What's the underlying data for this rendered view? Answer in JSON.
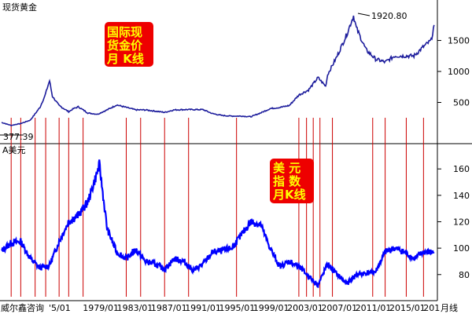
{
  "colors": {
    "background": "#ffffff",
    "gold_line": "#1c1c9c",
    "usd_line": "#0000ff",
    "marker": "#cc0000",
    "note_bg": "#ee0000",
    "note_text": "#ffff00"
  },
  "chart_data": [
    {
      "type": "line",
      "title": "现货黄金",
      "note_lines": [
        "国际现",
        "货金价",
        "月 K线"
      ],
      "left_value_label": "377.39",
      "peak_label": "1920.80",
      "ylim": [
        0,
        1950
      ],
      "yticks": [
        500,
        1000,
        1500
      ],
      "series": [
        {
          "x": [
            1975,
            1976,
            1977,
            1978,
            1979,
            1979.5,
            1980,
            1980.3,
            1981,
            1982,
            1982.5,
            1983,
            1984,
            1985,
            1986,
            1987,
            1988,
            1989,
            1990,
            1991,
            1992,
            1993,
            1994,
            1995,
            1996,
            1997,
            1998,
            1999,
            2000,
            2001,
            2002,
            2003,
            2004,
            2005,
            2006,
            2007,
            2008,
            2008.8,
            2009,
            2010,
            2011,
            2011.7,
            2012,
            2013,
            2014,
            2015,
            2016,
            2017,
            2018,
            2019,
            2019.8,
            2020.1
          ],
          "values": [
            177,
            130,
            160,
            215,
            420,
            600,
            850,
            600,
            450,
            350,
            400,
            430,
            330,
            310,
            380,
            460,
            420,
            380,
            380,
            360,
            340,
            380,
            385,
            385,
            385,
            320,
            290,
            280,
            280,
            270,
            330,
            400,
            420,
            450,
            620,
            700,
            900,
            760,
            950,
            1250,
            1600,
            1900,
            1700,
            1350,
            1200,
            1150,
            1250,
            1250,
            1250,
            1400,
            1500,
            1750
          ]
        }
      ]
    },
    {
      "type": "line",
      "title": "A美元",
      "note_lines": [
        "美 元",
        "指 数",
        "月K线"
      ],
      "ylim": [
        65,
        172
      ],
      "yticks": [
        80,
        100,
        120,
        140,
        160
      ],
      "series": [
        {
          "x": [
            1975,
            1976,
            1977,
            1978,
            1979,
            1980,
            1981,
            1982,
            1983,
            1984,
            1985,
            1985.2,
            1986,
            1987,
            1988,
            1989,
            1990,
            1991,
            1992,
            1993,
            1994,
            1995,
            1996,
            1997,
            1998,
            1999,
            2000,
            2001,
            2002,
            2003,
            2004,
            2005,
            2006,
            2007,
            2008,
            2009,
            2010,
            2011,
            2012,
            2013,
            2014,
            2015,
            2016,
            2017,
            2018,
            2019,
            2020.1
          ],
          "values": [
            98,
            104,
            105,
            92,
            85,
            87,
            105,
            120,
            125,
            135,
            158,
            163,
            115,
            97,
            92,
            99,
            90,
            88,
            84,
            92,
            90,
            83,
            88,
            97,
            98,
            100,
            110,
            120,
            118,
            100,
            86,
            90,
            86,
            79,
            72,
            88,
            80,
            73,
            80,
            81,
            82,
            97,
            100,
            97,
            92,
            97,
            97
          ]
        }
      ],
      "x_tick_labels": [
        "'5/01",
        "1979/01",
        "1983/01",
        "1987/01",
        "1991/01",
        "1995/01",
        "1999/01",
        "2003/01",
        "2007/01",
        "2011/01",
        "2015/01",
        "201"
      ]
    }
  ],
  "footer": {
    "brand": "威尔鑫咨询",
    "period": "月线"
  },
  "marker_years": [
    1976,
    1977,
    1978.5,
    1979.6,
    1981,
    1982,
    1983.5,
    1988,
    1989.5,
    1992,
    1994.5,
    1999.5,
    2006,
    2006.8,
    2007.5,
    2008.2,
    2009.5,
    2013.7,
    2015,
    2017.2,
    2019
  ]
}
